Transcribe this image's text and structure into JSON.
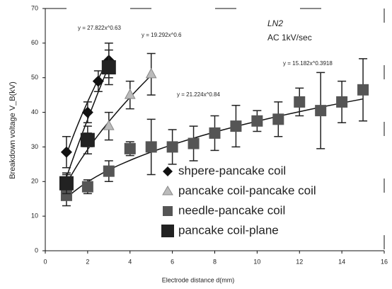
{
  "chart_data": {
    "type": "scatter",
    "xlabel": "Electrode distance d(mm)",
    "ylabel": "Breakdown voltage V_B(kV)",
    "annotations": [
      "LN2",
      "AC 1kV/sec"
    ],
    "xlim": [
      0,
      16
    ],
    "xticks": [
      0,
      2,
      4,
      6,
      8,
      10,
      12,
      14,
      16
    ],
    "ylim": [
      0,
      70
    ],
    "yticks": [
      0,
      10,
      20,
      30,
      40,
      50,
      60,
      70
    ],
    "series": [
      {
        "name": "shpere-pancake coil",
        "marker": "diamond",
        "color": "#111111",
        "x": [
          1,
          2,
          2.5,
          3
        ],
        "values": [
          28.5,
          40,
          49,
          55
        ],
        "errors": [
          4.5,
          3,
          3,
          5
        ]
      },
      {
        "name": "pancake coil-pancake coil",
        "marker": "triangle",
        "color": "#bbbbbb",
        "x": [
          1,
          2,
          3,
          4,
          5
        ],
        "values": [
          19,
          31,
          36,
          45,
          51
        ],
        "errors": [
          3,
          3,
          4,
          4,
          6
        ]
      },
      {
        "name": "needle-pancake coil",
        "marker": "square",
        "color": "#555555",
        "x": [
          1,
          2,
          3,
          4,
          5,
          6,
          7,
          8,
          9,
          10,
          11,
          12,
          13,
          14,
          15
        ],
        "values": [
          16,
          18.5,
          23,
          29.5,
          30,
          30,
          31,
          34,
          36,
          37.5,
          38,
          43,
          40.5,
          43,
          46.5
        ],
        "errors": [
          3,
          2,
          3,
          2,
          8,
          5,
          5,
          5,
          6,
          3,
          5,
          4,
          11,
          6,
          9
        ]
      },
      {
        "name": "pancake coil-plane",
        "marker": "bigsquare",
        "color": "#222222",
        "x": [
          1,
          2,
          3
        ],
        "values": [
          19.5,
          32,
          53
        ],
        "errors": [
          3,
          4,
          5
        ]
      }
    ],
    "fits": [
      {
        "equation": "y = 27.822x^0.63",
        "coef": 27.822,
        "exp": 0.63,
        "range": [
          1,
          3
        ]
      },
      {
        "equation": "y = 19.292x^0.6",
        "coef": 19.292,
        "exp": 0.6,
        "range": [
          1,
          5
        ]
      },
      {
        "equation": "y = 21.224x^0.84",
        "coef": 21.224,
        "exp": 0.84,
        "range": [
          1,
          3
        ]
      },
      {
        "equation": "y = 15.182x^0.3918",
        "coef": 15.182,
        "exp": 0.3918,
        "range": [
          1,
          15
        ]
      }
    ]
  }
}
